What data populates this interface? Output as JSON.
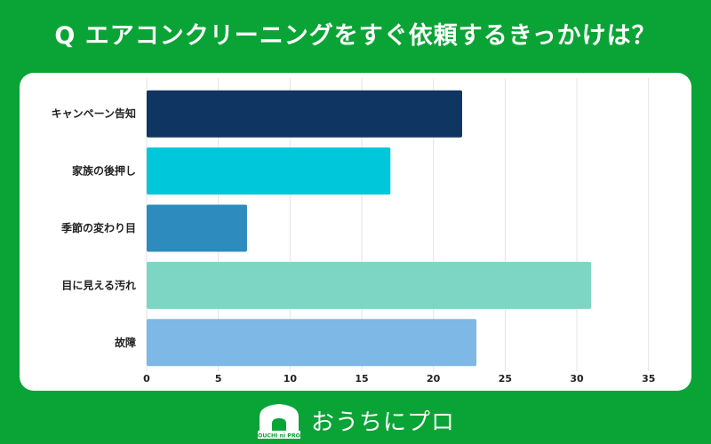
{
  "header": {
    "title": "Q エアコンクリーニングをすぐ依頼するきっかけは？"
  },
  "chart_data": {
    "type": "bar",
    "orientation": "horizontal",
    "categories": [
      "キャンペーン告知",
      "家族の後押し",
      "季節の変わり目",
      "目に見える汚れ",
      "故障"
    ],
    "values": [
      22,
      17,
      7,
      31,
      23
    ],
    "colors": [
      "#0f3563",
      "#00c7d9",
      "#2d8bbd",
      "#7dd6c4",
      "#7db8e6"
    ],
    "xlim": [
      0,
      37
    ],
    "xticks": [
      0,
      5,
      10,
      15,
      20,
      25,
      30,
      35
    ],
    "grid": true,
    "title": "",
    "xlabel": "",
    "ylabel": ""
  },
  "footer": {
    "logo_small_text": "OUCHI ni PRO",
    "brand_text": "おうちにプロ"
  }
}
